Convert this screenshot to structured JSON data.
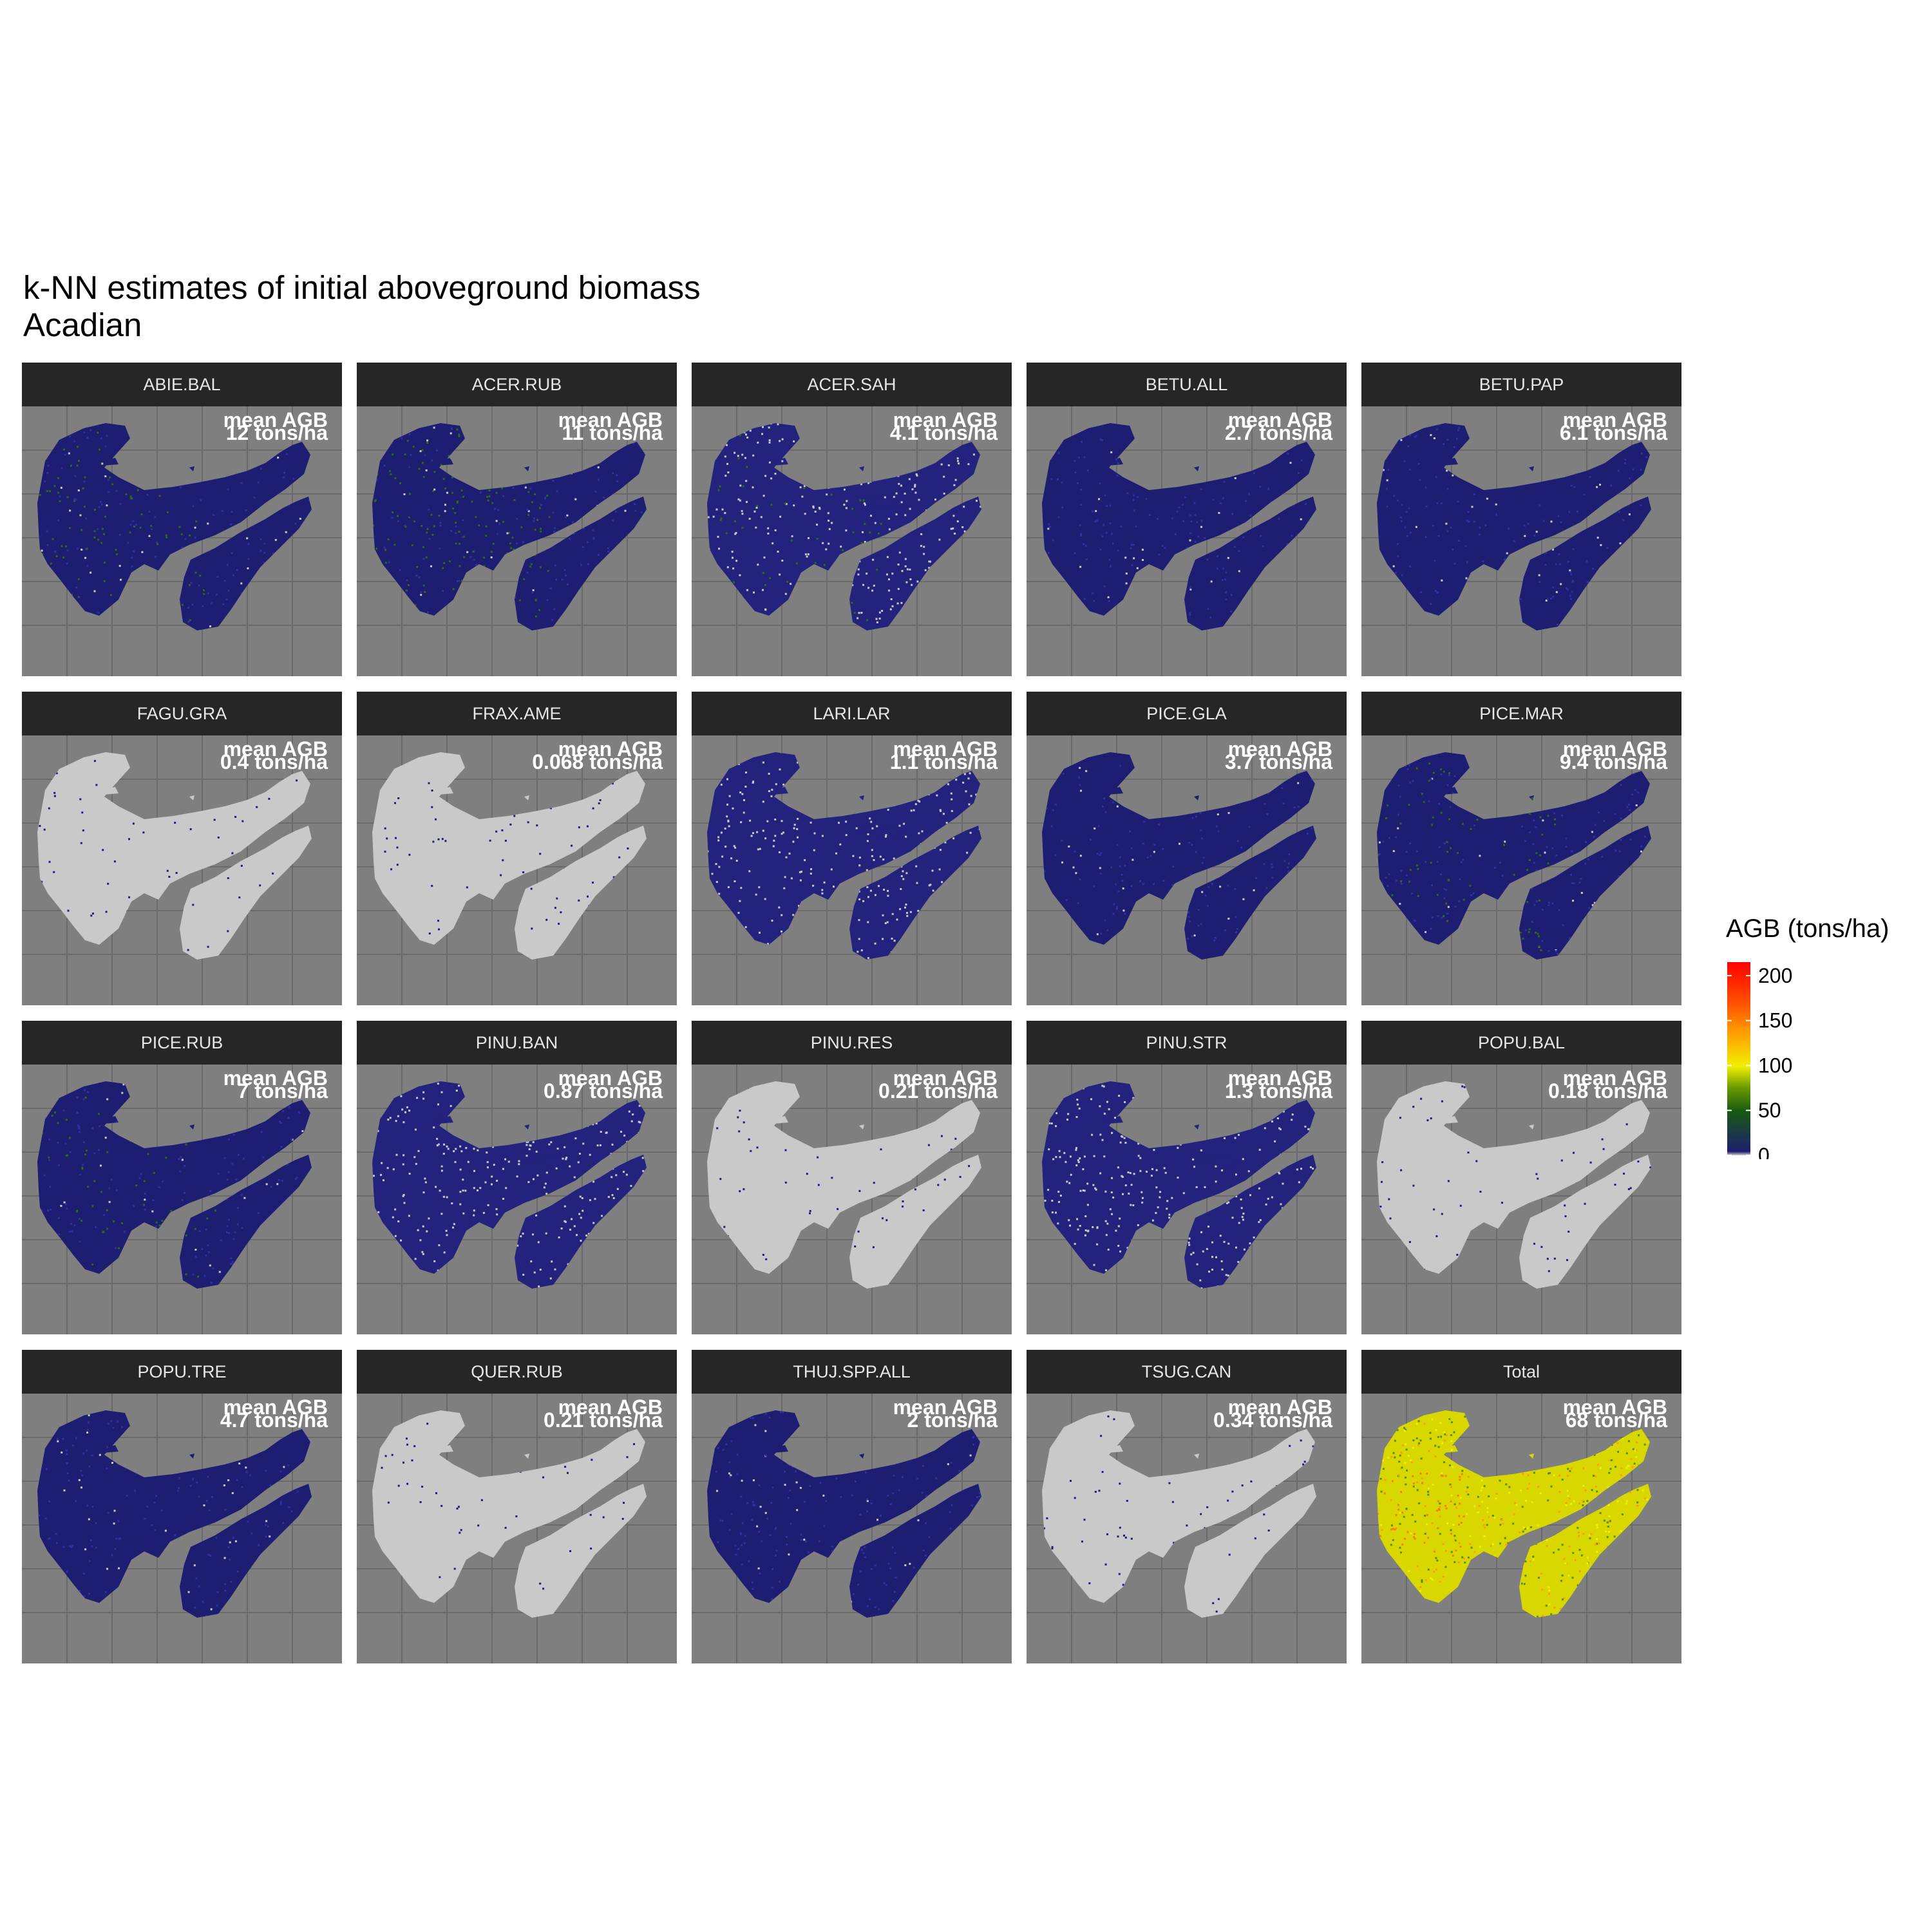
{
  "figure": {
    "title_line1": "k-NN estimates of initial aboveground biomass",
    "title_line2": "Acadian"
  },
  "chart_data": {
    "type": "heatmap",
    "facet_layout": "4 rows x 5 columns",
    "annotation_label": "mean AGB",
    "annotation_unit": "tons/ha",
    "panel_background": "#7f7f7f",
    "grid": "on",
    "legend": {
      "title": "AGB (tons/ha)",
      "placement": "right",
      "ticks": [
        0,
        50,
        100,
        150,
        200
      ],
      "range": [
        0,
        215
      ],
      "colors": [
        "#cfcfcf",
        "#1e1e6e",
        "#185a12",
        "#6a9a00",
        "#f0f000",
        "#ffa000",
        "#ff5000",
        "#ff0000"
      ],
      "color_stops": [
        0,
        0.02,
        0.23,
        0.35,
        0.46,
        0.63,
        0.79,
        1
      ]
    },
    "facets": [
      {
        "name": "ABIE.BAL",
        "mean_agb": 12,
        "label": "12 tons/ha",
        "style": "darkblue",
        "green": 0.22
      },
      {
        "name": "ACER.RUB",
        "mean_agb": 11,
        "label": "11 tons/ha",
        "style": "darkblue",
        "green": 0.3
      },
      {
        "name": "ACER.SAH",
        "mean_agb": 4.1,
        "label": "4.1 tons/ha",
        "style": "mixed",
        "green": 0.08
      },
      {
        "name": "BETU.ALL",
        "mean_agb": 2.7,
        "label": "2.7 tons/ha",
        "style": "darkblue",
        "green": 0.0
      },
      {
        "name": "BETU.PAP",
        "mean_agb": 6.1,
        "label": "6.1 tons/ha",
        "style": "darkblue",
        "green": 0.0
      },
      {
        "name": "FAGU.GRA",
        "mean_agb": 0.4,
        "label": "0.4 tons/ha",
        "style": "gray",
        "green": 0.0
      },
      {
        "name": "FRAX.AME",
        "mean_agb": 0.068,
        "label": "0.068 tons/ha",
        "style": "gray",
        "green": 0.0
      },
      {
        "name": "LARI.LAR",
        "mean_agb": 1.1,
        "label": "1.1 tons/ha",
        "style": "mixed",
        "green": 0.0
      },
      {
        "name": "PICE.GLA",
        "mean_agb": 3.7,
        "label": "3.7 tons/ha",
        "style": "darkblue",
        "green": 0.0
      },
      {
        "name": "PICE.MAR",
        "mean_agb": 9.4,
        "label": "9.4 tons/ha",
        "style": "darkblue",
        "green": 0.18
      },
      {
        "name": "PICE.RUB",
        "mean_agb": 7,
        "label": "7 tons/ha",
        "style": "darkblue",
        "green": 0.14
      },
      {
        "name": "PINU.BAN",
        "mean_agb": 0.87,
        "label": "0.87 tons/ha",
        "style": "mixed",
        "green": 0.0
      },
      {
        "name": "PINU.RES",
        "mean_agb": 0.21,
        "label": "0.21 tons/ha",
        "style": "gray",
        "green": 0.0
      },
      {
        "name": "PINU.STR",
        "mean_agb": 1.3,
        "label": "1.3 tons/ha",
        "style": "mixed",
        "green": 0.0
      },
      {
        "name": "POPU.BAL",
        "mean_agb": 0.18,
        "label": "0.18 tons/ha",
        "style": "gray",
        "green": 0.0
      },
      {
        "name": "POPU.TRE",
        "mean_agb": 4.7,
        "label": "4.7 tons/ha",
        "style": "darkblue",
        "green": 0.0
      },
      {
        "name": "QUER.RUB",
        "mean_agb": 0.21,
        "label": "0.21 tons/ha",
        "style": "gray",
        "green": 0.0
      },
      {
        "name": "THUJ.SPP.ALL",
        "mean_agb": 2,
        "label": "2 tons/ha",
        "style": "darkblue",
        "green": 0.0
      },
      {
        "name": "TSUG.CAN",
        "mean_agb": 0.34,
        "label": "0.34 tons/ha",
        "style": "gray",
        "green": 0.0
      },
      {
        "name": "Total",
        "mean_agb": 68,
        "label": "68 tons/ha",
        "style": "total",
        "green": 0.0
      }
    ]
  }
}
